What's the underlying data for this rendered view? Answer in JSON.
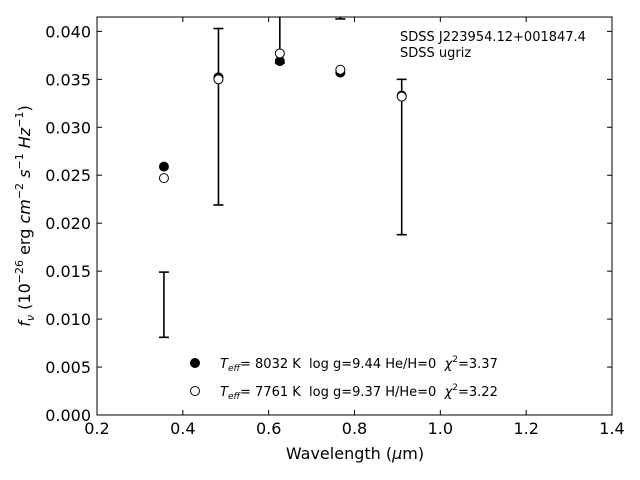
{
  "chart_data": {
    "type": "scatter",
    "xlabel_pre": "Wavelength (",
    "xlabel_mu": "μ",
    "xlabel_post": "m)",
    "ylabel": "f_ν (10^-26 erg cm^-2 s^-1 Hz^-1)",
    "xlim": [
      0.2,
      1.4
    ],
    "ylim": [
      0.0,
      0.0415
    ],
    "x_ticks": [
      0.2,
      0.4,
      0.6,
      0.8,
      1.0,
      1.2,
      1.4
    ],
    "x_tick_labels": [
      "0.2",
      "0.4",
      "0.6",
      "0.8",
      "1.0",
      "1.2",
      "1.4"
    ],
    "y_ticks": [
      0.0,
      0.005,
      0.01,
      0.015,
      0.02,
      0.025,
      0.03,
      0.035,
      0.04
    ],
    "y_tick_labels": [
      "0.000",
      "0.005",
      "0.010",
      "0.015",
      "0.020",
      "0.025",
      "0.030",
      "0.035",
      "0.040"
    ],
    "grid": false,
    "annotation": [
      "SDSS J223954.12+001847.4",
      "SDSS ugriz"
    ],
    "observed": {
      "x": [
        0.356,
        0.483,
        0.626,
        0.767,
        0.91
      ],
      "y": [
        0.0115,
        0.0311,
        0.0412,
        0.043,
        0.0269
      ],
      "yerr": [
        0.0034,
        0.0092,
        0.0045,
        0.0017,
        0.0081
      ]
    },
    "series": [
      {
        "name": "T_eff= 8032 K log g=9.44 He/H=0 χ²=3.37",
        "marker": "filled",
        "color": "#000000",
        "x": [
          0.356,
          0.483,
          0.626,
          0.767,
          0.91
        ],
        "y": [
          0.0259,
          0.0352,
          0.0369,
          0.0357,
          0.0333
        ]
      },
      {
        "name": "T_eff= 7761 K log g=9.37 H/He=0 χ²=3.22",
        "marker": "open",
        "color": "#000000",
        "x": [
          0.356,
          0.483,
          0.626,
          0.767,
          0.91
        ],
        "y": [
          0.0247,
          0.035,
          0.0377,
          0.036,
          0.0332
        ]
      }
    ],
    "legend": [
      {
        "teff": "8032 K",
        "rest": "log g=9.44  He/H=0",
        "chi": "=3.37"
      },
      {
        "teff": "7761 K",
        "rest": "log g=9.37  H/He=0",
        "chi": "=3.22"
      }
    ],
    "legend_placement": "lower-center"
  }
}
